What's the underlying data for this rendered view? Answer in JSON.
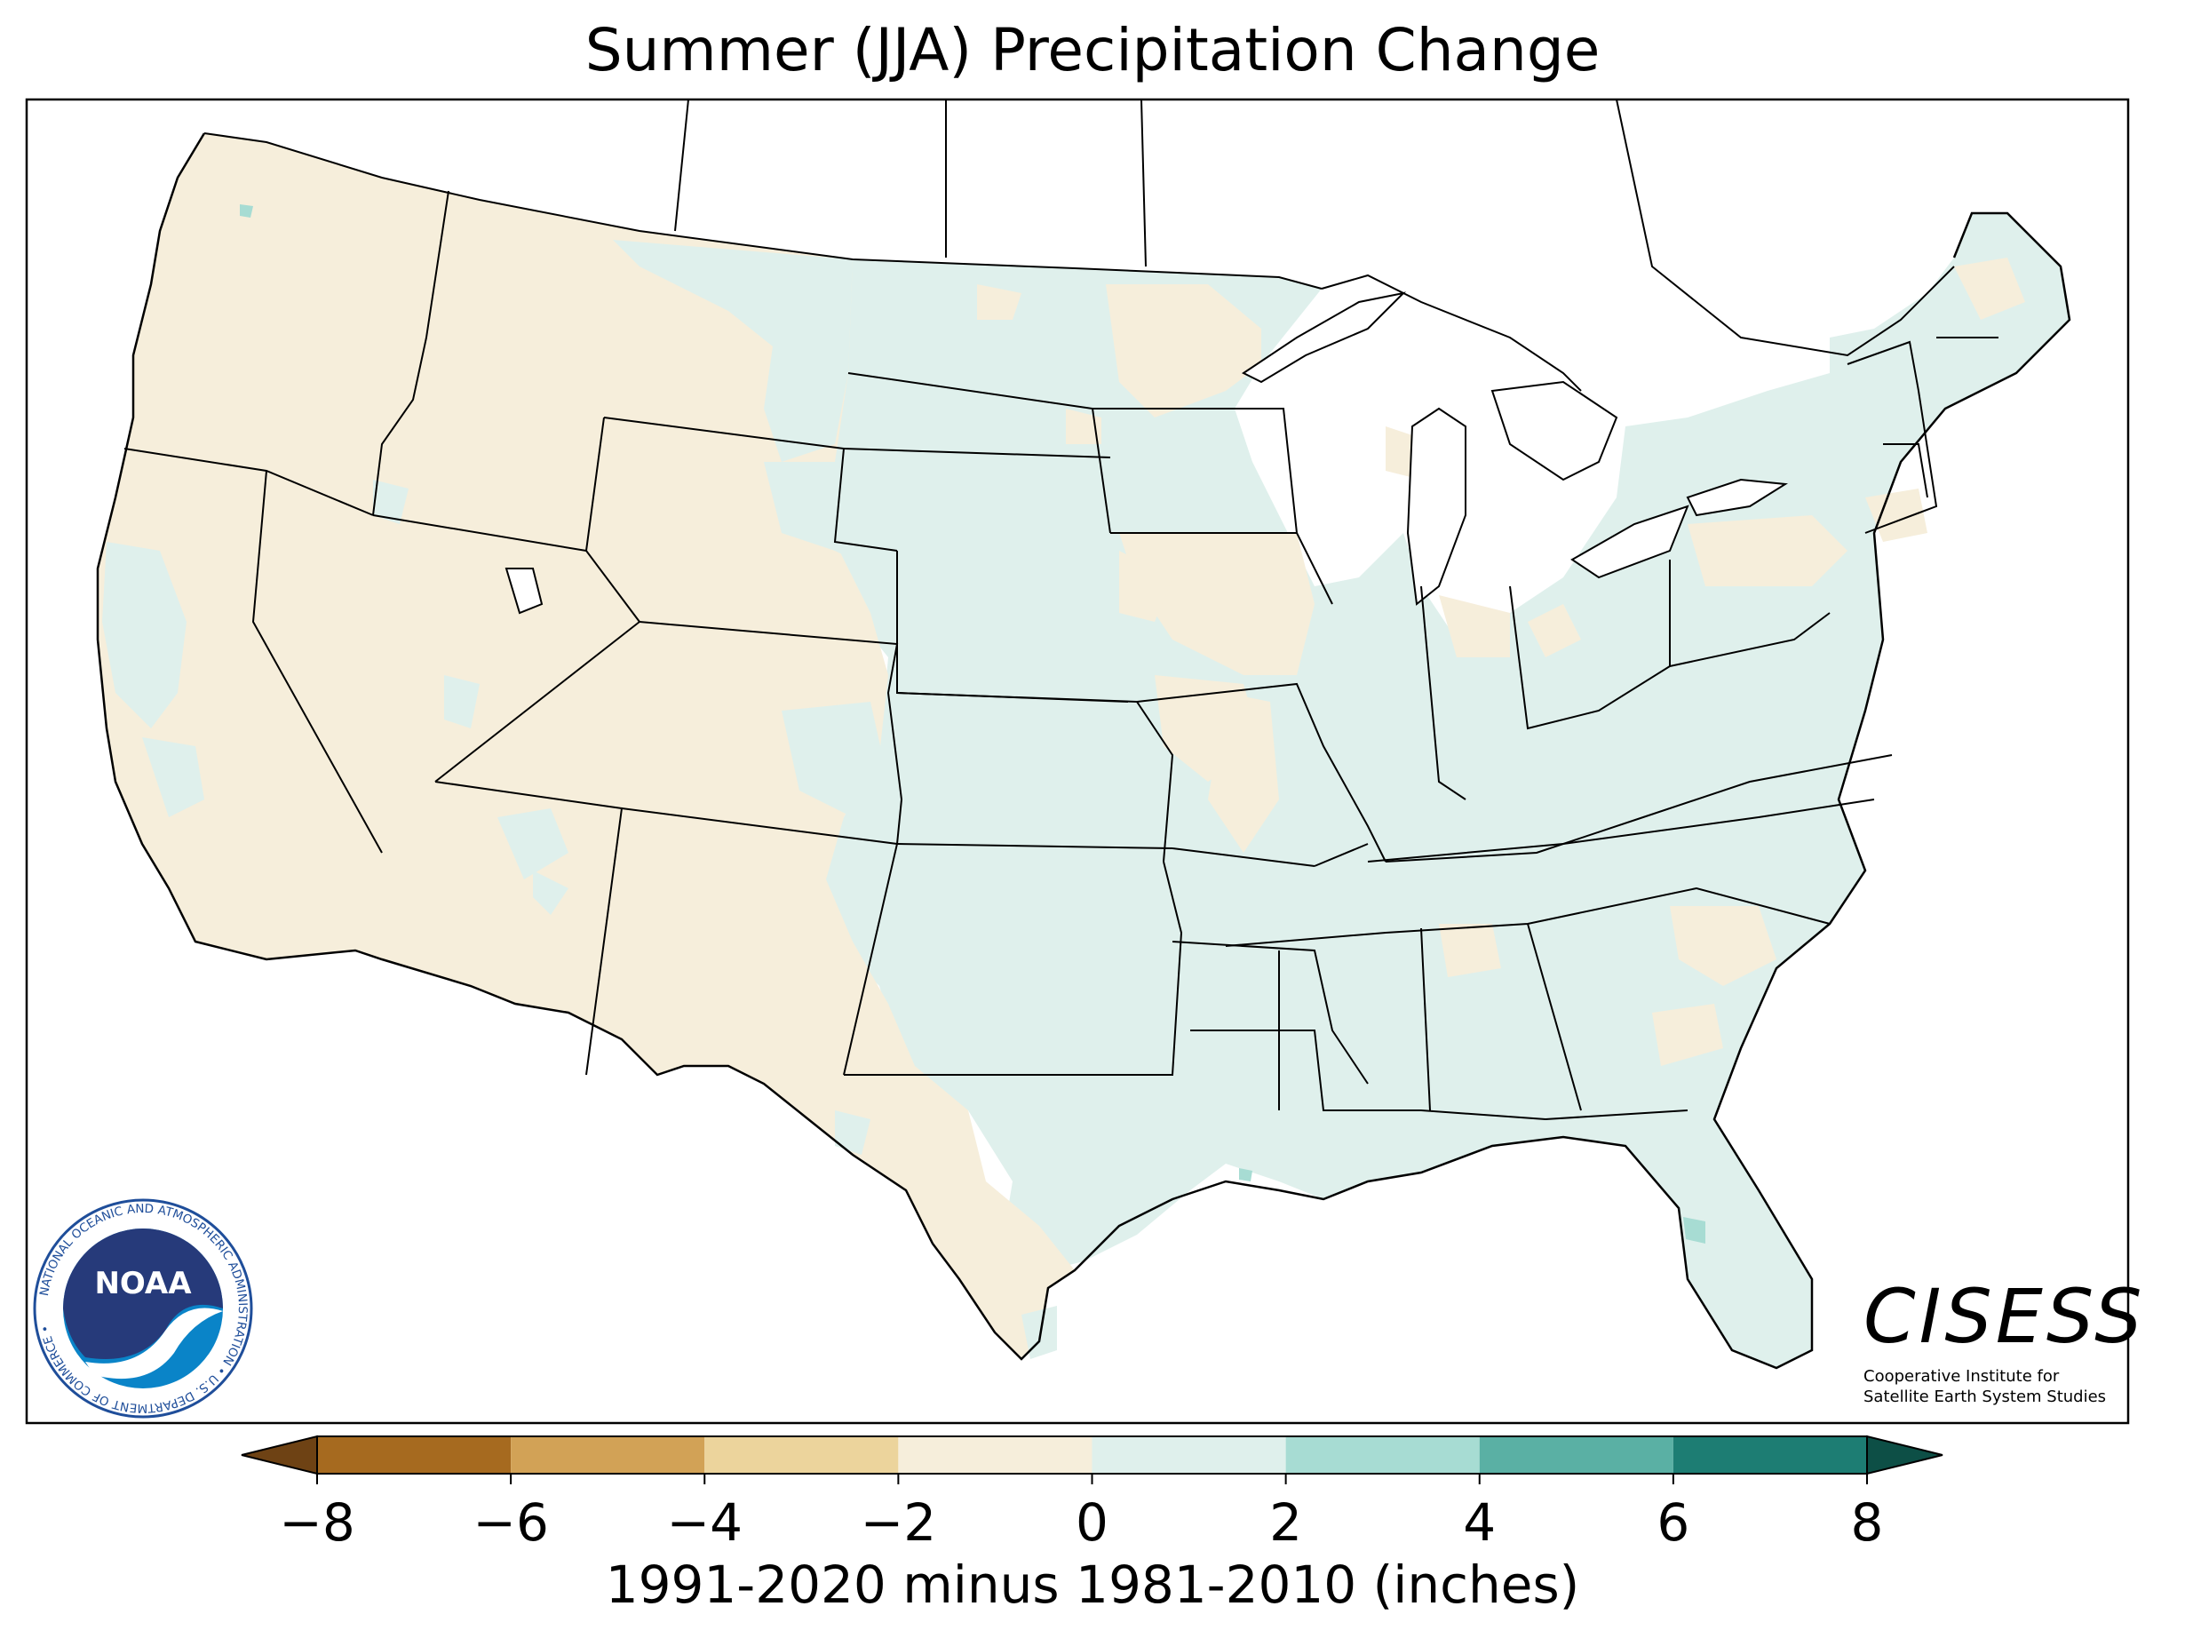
{
  "title": "Summer (JJA) Precipitation Change",
  "colorbar": {
    "label": "1991-2020 minus 1981-2010 (inches)",
    "ticks": [
      "−8",
      "−6",
      "−4",
      "−2",
      "0",
      "2",
      "4",
      "6",
      "8"
    ],
    "tick_values": [
      -8,
      -6,
      -4,
      -2,
      0,
      2,
      4,
      6,
      8
    ],
    "colors": [
      "#a66a1f",
      "#d2a256",
      "#ecd49c",
      "#f6eedb",
      "#dff0ec",
      "#a7dcd3",
      "#5ab0a4",
      "#1d7d73"
    ],
    "under_color": "#6e4214",
    "over_color": "#0d4f46"
  },
  "map": {
    "land_dry_color": "#f6eedb",
    "land_wet_color": "#dff0ec",
    "water_color": "#ffffff"
  },
  "logos": {
    "noaa_text": "NOAA",
    "noaa_ring": "NATIONAL OCEANIC AND ATMOSPHERIC ADMINISTRATION • U.S. DEPARTMENT OF COMMERCE •",
    "cisess_name": "CISESS",
    "cisess_line1": "Cooperative Institute for",
    "cisess_line2": "Satellite Earth System Studies"
  }
}
